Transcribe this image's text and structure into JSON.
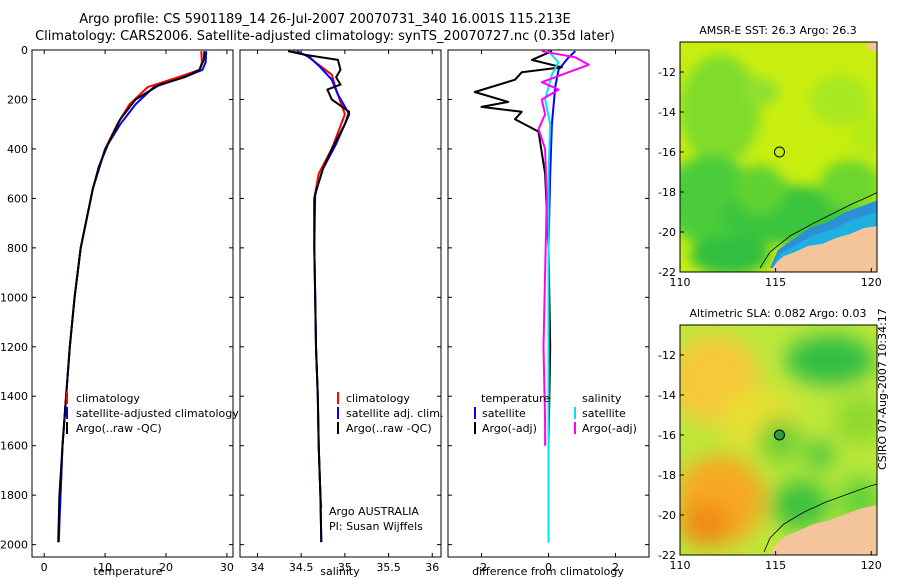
{
  "header": {
    "line1": "Argo profile: CS 5901189_14 26-Jul-2007 20070731_340 16.001S 115.213E",
    "line2": "Climatology: CARS2006. Satellite-adjusted climatology: synTS_20070727.nc (0.35d later)"
  },
  "stamp": "CSIRO 07-Aug-2007 10:34:17",
  "colors": {
    "climatology": "#ff0000",
    "satellite": "#0000ff",
    "argo": "#000000",
    "salinity_satellite": "#00e5ee",
    "salinity_argo": "#ff00ff",
    "land": "#f4c59a"
  },
  "chart_data": [
    {
      "id": "temperature",
      "type": "line",
      "xlabel": "temperature",
      "ylabel": "",
      "xlim": [
        -2,
        31
      ],
      "ylim": [
        2050,
        0
      ],
      "xticks": [
        0,
        10,
        20,
        30
      ],
      "yticks": [
        0,
        200,
        400,
        600,
        800,
        1000,
        1200,
        1400,
        1600,
        1800,
        2000
      ],
      "legend": [
        "climatology",
        "satellite-adjusted climatology",
        "Argo(..raw -QC)"
      ],
      "series": [
        {
          "name": "climatology",
          "color": "#ff0000",
          "points": [
            [
              25.8,
              5
            ],
            [
              25.9,
              50
            ],
            [
              25.5,
              80
            ],
            [
              22,
              110
            ],
            [
              17,
              150
            ],
            [
              14,
              220
            ],
            [
              12,
              300
            ],
            [
              10,
              400
            ],
            [
              9,
              480
            ],
            [
              8,
              560
            ],
            [
              7,
              680
            ],
            [
              6,
              800
            ],
            [
              5,
              1000
            ],
            [
              4.2,
              1200
            ],
            [
              3.6,
              1400
            ],
            [
              3.0,
              1600
            ],
            [
              2.6,
              1850
            ]
          ]
        },
        {
          "name": "satellite-adjusted climatology",
          "color": "#0000ff",
          "points": [
            [
              26.6,
              5
            ],
            [
              26.5,
              50
            ],
            [
              26,
              80
            ],
            [
              23,
              110
            ],
            [
              18,
              150
            ],
            [
              15,
              220
            ],
            [
              12.5,
              300
            ],
            [
              10,
              400
            ],
            [
              9,
              480
            ],
            [
              8,
              560
            ],
            [
              7,
              680
            ],
            [
              6,
              800
            ],
            [
              5,
              1000
            ],
            [
              4.2,
              1200
            ],
            [
              3.6,
              1400
            ],
            [
              3.0,
              1600
            ],
            [
              2.6,
              1850
            ],
            [
              2.4,
              1990
            ]
          ]
        },
        {
          "name": "Argo(..raw -QC)",
          "color": "#000000",
          "points": [
            [
              26.3,
              5
            ],
            [
              26.2,
              40
            ],
            [
              25.5,
              80
            ],
            [
              23,
              110
            ],
            [
              19,
              140
            ],
            [
              15,
              200
            ],
            [
              12.5,
              280
            ],
            [
              10.5,
              380
            ],
            [
              9,
              470
            ],
            [
              8,
              560
            ],
            [
              7,
              680
            ],
            [
              6,
              800
            ],
            [
              5,
              1000
            ],
            [
              4.2,
              1200
            ],
            [
              3.6,
              1400
            ],
            [
              3.0,
              1600
            ],
            [
              2.5,
              1800
            ],
            [
              2.3,
              1990
            ]
          ]
        }
      ]
    },
    {
      "id": "salinity",
      "type": "line",
      "xlabel": "salinity",
      "xlim": [
        33.8,
        36.1
      ],
      "ylim": [
        2050,
        0
      ],
      "xticks": [
        34,
        34.5,
        35,
        35.5,
        36
      ],
      "legend": [
        "climatology",
        "satellite adj. clim.",
        "Argo(..raw -QC)"
      ],
      "annotations": [
        "Argo AUSTRALIA",
        "PI: Susan Wijffels"
      ],
      "series": [
        {
          "name": "climatology",
          "color": "#ff0000",
          "points": [
            [
              34.4,
              5
            ],
            [
              34.55,
              20
            ],
            [
              34.7,
              60
            ],
            [
              34.85,
              100
            ],
            [
              34.9,
              160
            ],
            [
              35.0,
              260
            ],
            [
              34.85,
              400
            ],
            [
              34.7,
              500
            ],
            [
              34.65,
              600
            ],
            [
              34.65,
              800
            ],
            [
              34.66,
              1000
            ],
            [
              34.67,
              1200
            ],
            [
              34.69,
              1400
            ],
            [
              34.7,
              1600
            ],
            [
              34.72,
              1800
            ],
            [
              34.73,
              1850
            ]
          ]
        },
        {
          "name": "satellite adj. clim.",
          "color": "#0000ff",
          "points": [
            [
              34.45,
              5
            ],
            [
              34.6,
              30
            ],
            [
              34.72,
              70
            ],
            [
              34.85,
              120
            ],
            [
              34.92,
              180
            ],
            [
              35.05,
              260
            ],
            [
              34.9,
              380
            ],
            [
              34.75,
              480
            ],
            [
              34.66,
              580
            ],
            [
              34.65,
              800
            ],
            [
              34.66,
              1000
            ],
            [
              34.67,
              1200
            ],
            [
              34.69,
              1400
            ],
            [
              34.7,
              1600
            ],
            [
              34.72,
              1800
            ],
            [
              34.73,
              1990
            ]
          ]
        },
        {
          "name": "Argo(..raw -QC)",
          "color": "#000000",
          "points": [
            [
              34.35,
              5
            ],
            [
              34.55,
              20
            ],
            [
              34.92,
              40
            ],
            [
              34.95,
              80
            ],
            [
              34.9,
              110
            ],
            [
              34.95,
              140
            ],
            [
              34.8,
              160
            ],
            [
              34.85,
              200
            ],
            [
              35.05,
              250
            ],
            [
              35.0,
              300
            ],
            [
              34.85,
              400
            ],
            [
              34.75,
              480
            ],
            [
              34.68,
              560
            ],
            [
              34.65,
              600
            ],
            [
              34.65,
              800
            ],
            [
              34.66,
              1000
            ],
            [
              34.67,
              1200
            ],
            [
              34.69,
              1400
            ],
            [
              34.7,
              1600
            ],
            [
              34.72,
              1800
            ],
            [
              34.73,
              1990
            ]
          ]
        }
      ]
    },
    {
      "id": "difference",
      "type": "line",
      "xlabel": "difference from climatology",
      "xlim": [
        -3.0,
        3.0
      ],
      "ylim": [
        2050,
        0
      ],
      "xticks": [
        -2,
        0,
        2
      ],
      "legend_temperature_title": "temperature",
      "legend_temperature": [
        "satellite",
        "Argo(-adj)"
      ],
      "legend_salinity_title": "salinity",
      "legend_salinity": [
        "satellite",
        "Argo(-adj)"
      ],
      "series": [
        {
          "name": "temperature satellite",
          "color": "#0000ff",
          "points": [
            [
              0.8,
              5
            ],
            [
              0.6,
              30
            ],
            [
              0.3,
              80
            ],
            [
              0.2,
              150
            ],
            [
              0.1,
              300
            ],
            [
              0.05,
              500
            ],
            [
              0.0,
              800
            ],
            [
              0.0,
              1200
            ],
            [
              0.0,
              1600
            ],
            [
              0.0,
              1990
            ]
          ]
        },
        {
          "name": "temperature Argo(-adj)",
          "color": "#000000",
          "points": [
            [
              0.1,
              5
            ],
            [
              -0.5,
              40
            ],
            [
              0.4,
              70
            ],
            [
              -0.8,
              90
            ],
            [
              -1.0,
              120
            ],
            [
              -2.2,
              170
            ],
            [
              -1.2,
              210
            ],
            [
              -2.0,
              230
            ],
            [
              -0.8,
              250
            ],
            [
              -1.0,
              280
            ],
            [
              -0.3,
              330
            ],
            [
              -0.1,
              500
            ],
            [
              0.0,
              800
            ],
            [
              0.05,
              1200
            ],
            [
              0.0,
              1600
            ],
            [
              0.0,
              1990
            ]
          ]
        },
        {
          "name": "salinity satellite",
          "color": "#00e5ee",
          "points": [
            [
              0.0,
              5
            ],
            [
              0.3,
              50
            ],
            [
              0.1,
              100
            ],
            [
              -0.1,
              200
            ],
            [
              0.05,
              300
            ],
            [
              0.0,
              500
            ],
            [
              0.0,
              800
            ],
            [
              0.0,
              1200
            ],
            [
              0.0,
              1600
            ],
            [
              0.0,
              1990
            ]
          ]
        },
        {
          "name": "salinity Argo(-adj)",
          "color": "#ff00ff",
          "points": [
            [
              -0.2,
              5
            ],
            [
              0.8,
              30
            ],
            [
              1.2,
              60
            ],
            [
              0.4,
              100
            ],
            [
              -0.2,
              130
            ],
            [
              0.3,
              160
            ],
            [
              -0.2,
              200
            ],
            [
              -0.1,
              260
            ],
            [
              -0.3,
              320
            ],
            [
              -0.1,
              400
            ],
            [
              -0.05,
              600
            ],
            [
              -0.1,
              900
            ],
            [
              -0.15,
              1200
            ],
            [
              -0.1,
              1500
            ],
            [
              -0.1,
              1600
            ]
          ]
        }
      ]
    },
    {
      "id": "sst_map",
      "type": "heatmap",
      "title": "AMSR-E SST: 26.3 Argo: 26.3",
      "xlim": [
        110,
        120.3
      ],
      "ylim": [
        -22,
        -10.5
      ],
      "xticks": [
        110,
        115,
        120
      ],
      "yticks": [
        -12,
        -14,
        -16,
        -18,
        -20,
        -22
      ],
      "marker": [
        115.2,
        -16.0
      ]
    },
    {
      "id": "sla_map",
      "type": "heatmap",
      "title": "Altimetric SLA: 0.082 Argo: 0.03",
      "xlim": [
        110,
        120.3
      ],
      "ylim": [
        -22,
        -10.5
      ],
      "xticks": [
        110,
        115,
        120
      ],
      "yticks": [
        -12,
        -14,
        -16,
        -18,
        -20,
        -22
      ],
      "marker": [
        115.2,
        -16.0
      ]
    }
  ]
}
